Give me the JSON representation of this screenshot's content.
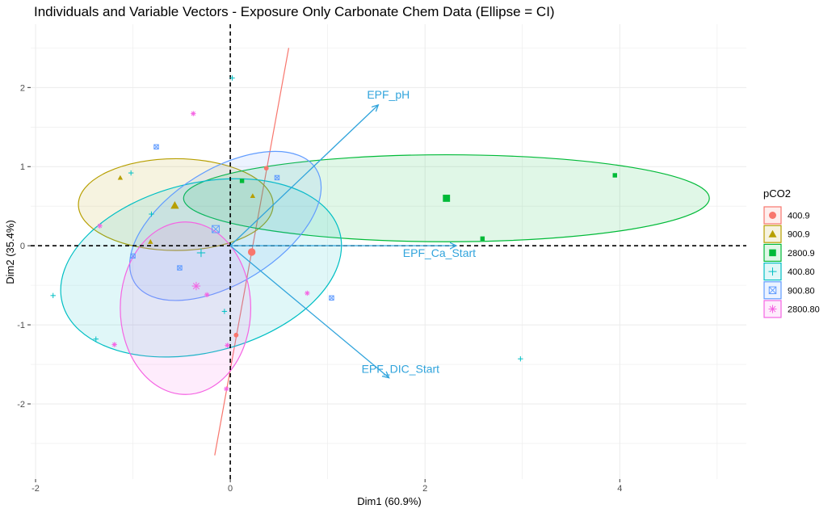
{
  "chart_data": {
    "type": "scatter",
    "title": "Individuals and Variable Vectors - Exposure Only Carbonate Chem Data (Ellipse = CI)",
    "xlabel": "Dim1 (60.9%)",
    "ylabel": "Dim2 (35.4%)",
    "xlim": [
      -2.05,
      5.3
    ],
    "ylim": [
      -2.95,
      2.8
    ],
    "xticks": [
      -2,
      0,
      2,
      4
    ],
    "yticks": [
      -2,
      -1,
      0,
      1,
      2
    ],
    "xtick_labels": [
      "-2",
      "0",
      "2",
      "4"
    ],
    "ytick_labels": [
      "-2",
      "-1",
      "0",
      "1",
      "2"
    ],
    "grid": true,
    "zero_lines": true,
    "legend": {
      "title": "pCO2",
      "position": "right",
      "entries": [
        {
          "label": "400.9",
          "color": "#f8766d",
          "shape": "circle"
        },
        {
          "label": "900.9",
          "color": "#b79f00",
          "shape": "triangle"
        },
        {
          "label": "2800.9",
          "color": "#00ba38",
          "shape": "square"
        },
        {
          "label": "400.80",
          "color": "#00bfc4",
          "shape": "plus"
        },
        {
          "label": "900.80",
          "color": "#619cff",
          "shape": "boxx"
        },
        {
          "label": "2800.80",
          "color": "#f564e3",
          "shape": "star"
        }
      ]
    },
    "series": [
      {
        "name": "400.9",
        "color": "#f8766d",
        "shape": "circle",
        "points": [
          [
            0.37,
            0.98
          ],
          [
            0.06,
            -1.13
          ]
        ],
        "centroid": [
          0.22,
          -0.08
        ],
        "ellipse": {
          "type": "line",
          "p1": [
            -0.16,
            -2.65
          ],
          "p2": [
            0.6,
            2.5
          ]
        }
      },
      {
        "name": "900.9",
        "color": "#b79f00",
        "shape": "triangle",
        "points": [
          [
            -1.13,
            0.86
          ],
          [
            -0.82,
            0.05
          ],
          [
            0.23,
            0.63
          ]
        ],
        "centroid": [
          -0.57,
          0.51
        ],
        "ellipse": {
          "cx": -0.56,
          "cy": 0.52,
          "rx": 1.0,
          "ry": 0.58,
          "angle": 0
        }
      },
      {
        "name": "2800.9",
        "color": "#00ba38",
        "shape": "square",
        "points": [
          [
            0.12,
            0.82
          ],
          [
            3.95,
            0.89
          ],
          [
            2.59,
            0.09
          ]
        ],
        "centroid": [
          2.22,
          0.6
        ],
        "ellipse": {
          "cx": 2.22,
          "cy": 0.6,
          "rx": 2.7,
          "ry": 0.55,
          "angle": 0
        }
      },
      {
        "name": "400.80",
        "color": "#00bfc4",
        "shape": "plus",
        "points": [
          [
            0.02,
            2.12
          ],
          [
            -1.02,
            0.92
          ],
          [
            -0.81,
            0.4
          ],
          [
            -1.82,
            -0.63
          ],
          [
            -1.38,
            -1.18
          ],
          [
            -0.06,
            -0.83
          ],
          [
            2.98,
            -1.43
          ]
        ],
        "centroid": [
          -0.3,
          -0.09
        ],
        "ellipse": {
          "cx": -0.3,
          "cy": -0.28,
          "rx": 1.47,
          "ry": 1.07,
          "angle": -14
        }
      },
      {
        "name": "900.80",
        "color": "#619cff",
        "shape": "boxx",
        "points": [
          [
            -0.76,
            1.25
          ],
          [
            0.48,
            0.86
          ],
          [
            -1.0,
            -0.13
          ],
          [
            -0.52,
            -0.28
          ],
          [
            1.04,
            -0.66
          ]
        ],
        "centroid": [
          -0.15,
          0.21
        ],
        "ellipse": {
          "cx": -0.05,
          "cy": 0.25,
          "rx": 1.1,
          "ry": 0.72,
          "angle": -32
        }
      },
      {
        "name": "2800.80",
        "color": "#f564e3",
        "shape": "star",
        "points": [
          [
            -0.38,
            1.67
          ],
          [
            -1.34,
            0.25
          ],
          [
            -0.24,
            -0.62
          ],
          [
            0.79,
            -0.6
          ],
          [
            -1.19,
            -1.25
          ],
          [
            -0.03,
            -1.26
          ],
          [
            -0.04,
            -1.81
          ]
        ],
        "centroid": [
          -0.35,
          -0.51
        ],
        "ellipse": {
          "cx": -0.46,
          "cy": -0.79,
          "rx": 0.67,
          "ry": 1.09,
          "angle": 0
        }
      }
    ],
    "vectors": [
      {
        "name": "EPF_pH",
        "x": 1.52,
        "y": 1.78
      },
      {
        "name": "EPF_Ca_Start",
        "x": 2.32,
        "y": 0.0
      },
      {
        "name": "EPF_DIC_Start",
        "x": 1.63,
        "y": -1.67
      }
    ]
  }
}
